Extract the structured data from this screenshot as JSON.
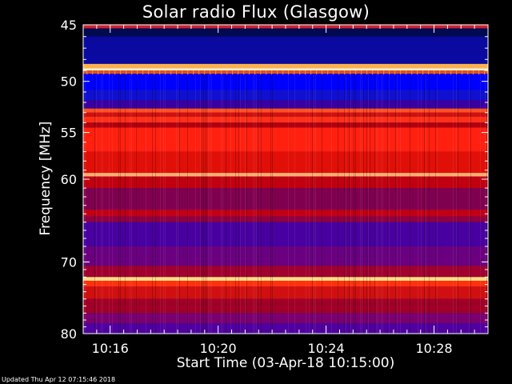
{
  "chart_data": {
    "type": "heatmap",
    "title": "Solar radio Flux (Glasgow)",
    "xlabel": "Start Time (03-Apr-18 10:15:00)",
    "ylabel": "Frequency [MHz]",
    "x_ticks": [
      "10:16",
      "10:20",
      "10:24",
      "10:28"
    ],
    "x_tick_minutes": [
      1,
      5,
      9,
      13
    ],
    "xlim_minutes": [
      0,
      15
    ],
    "y_ticks": [
      45,
      50,
      55,
      60,
      70,
      80
    ],
    "ylim": [
      45,
      80
    ],
    "y_scale": "log",
    "grid": false,
    "colormap": [
      "#000080",
      "#0000ff",
      "#500090",
      "#c00000",
      "#ff2000",
      "#ff9040",
      "#ffffa0"
    ],
    "bands": [
      {
        "from": 45.0,
        "to": 45.3,
        "color": "#d02030"
      },
      {
        "from": 45.3,
        "to": 46.0,
        "color": "#000a50"
      },
      {
        "from": 46.0,
        "to": 48.4,
        "color": "#0a0aa0"
      },
      {
        "from": 48.4,
        "to": 48.8,
        "color": "#ffb050"
      },
      {
        "from": 48.8,
        "to": 49.0,
        "color": "#ffffd0"
      },
      {
        "from": 49.0,
        "to": 49.3,
        "color": "#e05020"
      },
      {
        "from": 49.3,
        "to": 50.8,
        "color": "#0000ff"
      },
      {
        "from": 50.8,
        "to": 51.8,
        "color": "#1010d0"
      },
      {
        "from": 51.8,
        "to": 52.6,
        "color": "#3a00a0"
      },
      {
        "from": 52.6,
        "to": 53.0,
        "color": "#ff5020"
      },
      {
        "from": 53.0,
        "to": 53.4,
        "color": "#d01010"
      },
      {
        "from": 53.4,
        "to": 54.0,
        "color": "#ff3018"
      },
      {
        "from": 54.0,
        "to": 54.5,
        "color": "#b00010"
      },
      {
        "from": 54.5,
        "to": 57.0,
        "color": "#ff2010"
      },
      {
        "from": 57.0,
        "to": 59.3,
        "color": "#e01008"
      },
      {
        "from": 59.3,
        "to": 59.7,
        "color": "#ffb070"
      },
      {
        "from": 59.7,
        "to": 61.0,
        "color": "#c00010"
      },
      {
        "from": 61.0,
        "to": 63.5,
        "color": "#800050"
      },
      {
        "from": 63.5,
        "to": 64.3,
        "color": "#c00018"
      },
      {
        "from": 64.3,
        "to": 65.0,
        "color": "#900040"
      },
      {
        "from": 65.0,
        "to": 68.0,
        "color": "#4800a0"
      },
      {
        "from": 68.0,
        "to": 70.5,
        "color": "#6a0080"
      },
      {
        "from": 70.5,
        "to": 72.0,
        "color": "#a00030"
      },
      {
        "from": 72.0,
        "to": 72.5,
        "color": "#ffe080"
      },
      {
        "from": 72.5,
        "to": 73.3,
        "color": "#ff3010"
      },
      {
        "from": 73.3,
        "to": 75.0,
        "color": "#d01010"
      },
      {
        "from": 75.0,
        "to": 77.0,
        "color": "#a00028"
      },
      {
        "from": 77.0,
        "to": 78.5,
        "color": "#7a0070"
      },
      {
        "from": 78.5,
        "to": 80.0,
        "color": "#5000a0"
      }
    ]
  },
  "footer": "Updated Thu Apr 12 07:15:46 2018"
}
